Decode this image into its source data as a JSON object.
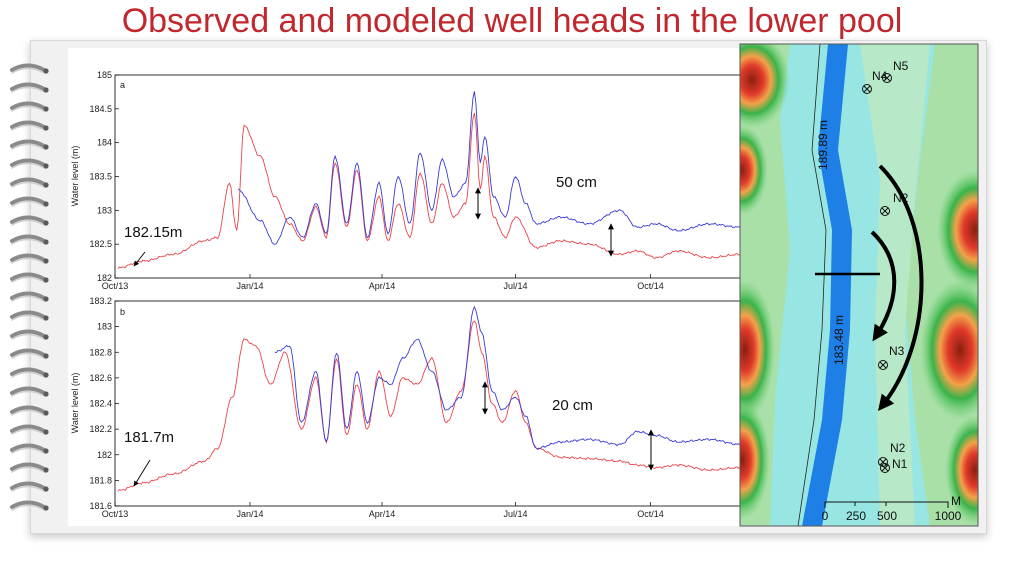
{
  "slide": {
    "title": "Observed and modeled well heads in the lower pool"
  },
  "colors": {
    "observed": "#3b3bd6",
    "modeled": "#e8454b",
    "river": "#1e7fe6",
    "title": "#c0282d"
  },
  "chart_data": [
    {
      "type": "line",
      "panel": "a",
      "ylabel": "Water level (m)",
      "ylim": [
        182,
        185
      ],
      "yticks": [
        "182",
        "182.5",
        "183",
        "183.5",
        "184",
        "184.5",
        "185"
      ],
      "xticks": [
        "Oct/13",
        "Jan/14",
        "Apr/14",
        "Jul/14",
        "Oct/14"
      ],
      "series": [
        {
          "color": "#e8454b",
          "x": [
            "2013-10-03",
            "2013-10-20",
            "2013-11-10",
            "2013-12-01",
            "2013-12-10",
            "2013-12-18",
            "2013-12-23",
            "2013-12-28",
            "2014-01-08",
            "2014-01-18",
            "2014-01-28",
            "2014-02-06",
            "2014-02-15",
            "2014-02-22",
            "2014-02-28",
            "2014-03-08",
            "2014-03-15",
            "2014-03-22",
            "2014-03-30",
            "2014-04-05",
            "2014-04-12",
            "2014-04-20",
            "2014-04-27",
            "2014-05-05",
            "2014-05-12",
            "2014-05-20",
            "2014-05-28",
            "2014-06-03",
            "2014-06-07",
            "2014-06-10",
            "2014-06-16",
            "2014-06-24",
            "2014-07-01",
            "2014-07-15",
            "2014-08-01",
            "2014-08-20",
            "2014-09-10",
            "2014-09-22",
            "2014-10-05",
            "2014-10-20",
            "2014-11-10",
            "2014-12-01"
          ],
          "y": [
            182.15,
            182.25,
            182.35,
            182.55,
            182.6,
            183.4,
            182.7,
            184.25,
            183.8,
            183.2,
            182.8,
            182.55,
            183.05,
            182.6,
            183.7,
            182.75,
            183.6,
            182.55,
            183.2,
            182.55,
            183.1,
            182.6,
            183.55,
            182.8,
            183.4,
            182.9,
            183.1,
            184.45,
            183.3,
            183.8,
            182.9,
            182.6,
            182.9,
            182.45,
            182.55,
            182.5,
            182.35,
            182.4,
            182.3,
            182.4,
            182.3,
            182.35
          ]
        },
        {
          "color": "#3b3bd6",
          "x": [
            "2013-12-24",
            "2014-01-08",
            "2014-01-18",
            "2014-01-28",
            "2014-02-06",
            "2014-02-15",
            "2014-02-22",
            "2014-02-28",
            "2014-03-08",
            "2014-03-15",
            "2014-03-22",
            "2014-03-30",
            "2014-04-05",
            "2014-04-12",
            "2014-04-20",
            "2014-04-27",
            "2014-05-05",
            "2014-05-12",
            "2014-05-20",
            "2014-05-28",
            "2014-06-03",
            "2014-06-07",
            "2014-06-10",
            "2014-06-16",
            "2014-06-24",
            "2014-07-01",
            "2014-07-08",
            "2014-07-15",
            "2014-08-01",
            "2014-08-20",
            "2014-09-10",
            "2014-09-22",
            "2014-10-05",
            "2014-10-20",
            "2014-11-10",
            "2014-12-01"
          ],
          "y": [
            183.3,
            182.85,
            182.5,
            182.9,
            182.6,
            183.1,
            182.65,
            183.8,
            182.8,
            183.7,
            182.6,
            183.4,
            182.65,
            183.5,
            182.8,
            183.85,
            183.0,
            183.75,
            183.2,
            183.4,
            184.75,
            183.7,
            184.1,
            183.2,
            182.9,
            183.5,
            183.1,
            182.8,
            182.9,
            182.8,
            183.0,
            182.75,
            182.8,
            182.7,
            182.8,
            182.75
          ]
        }
      ],
      "annotations": [
        {
          "text": "182.15m"
        },
        {
          "text": "50 cm"
        }
      ]
    },
    {
      "type": "line",
      "panel": "b",
      "ylabel": "Water level (m)",
      "ylim": [
        181.6,
        183.2
      ],
      "yticks": [
        "181.6",
        "181.8",
        "182",
        "182.2",
        "182.4",
        "182.6",
        "182.8",
        "183",
        "183.2"
      ],
      "xticks": [
        "Oct/13",
        "Jan/14",
        "Apr/14",
        "Jul/14",
        "Oct/14"
      ],
      "series": [
        {
          "color": "#e8454b",
          "x": [
            "2013-10-03",
            "2013-10-20",
            "2013-11-10",
            "2013-12-01",
            "2013-12-10",
            "2013-12-20",
            "2013-12-28",
            "2014-01-05",
            "2014-01-15",
            "2014-01-25",
            "2014-02-05",
            "2014-02-15",
            "2014-02-22",
            "2014-03-01",
            "2014-03-08",
            "2014-03-15",
            "2014-03-22",
            "2014-03-30",
            "2014-04-07",
            "2014-04-15",
            "2014-04-25",
            "2014-05-05",
            "2014-05-15",
            "2014-05-25",
            "2014-06-03",
            "2014-06-08",
            "2014-06-15",
            "2014-06-22",
            "2014-07-01",
            "2014-07-08",
            "2014-07-15",
            "2014-08-01",
            "2014-08-20",
            "2014-09-10",
            "2014-09-22",
            "2014-10-05",
            "2014-10-20",
            "2014-11-10",
            "2014-12-01"
          ],
          "y": [
            181.72,
            181.78,
            181.85,
            181.95,
            182.05,
            182.45,
            182.9,
            182.85,
            182.55,
            182.8,
            182.2,
            182.6,
            182.1,
            182.75,
            182.15,
            182.55,
            182.2,
            182.65,
            182.3,
            182.6,
            182.55,
            182.75,
            182.25,
            182.5,
            183.05,
            182.8,
            182.4,
            182.25,
            182.5,
            182.25,
            182.05,
            181.98,
            181.97,
            181.95,
            181.92,
            181.9,
            181.92,
            181.88,
            181.9
          ]
        },
        {
          "color": "#3b3bd6",
          "x": [
            "2014-01-18",
            "2014-01-28",
            "2014-02-05",
            "2014-02-15",
            "2014-02-22",
            "2014-03-01",
            "2014-03-08",
            "2014-03-15",
            "2014-03-22",
            "2014-03-30",
            "2014-04-07",
            "2014-04-15",
            "2014-04-25",
            "2014-05-05",
            "2014-05-15",
            "2014-05-25",
            "2014-06-03",
            "2014-06-08",
            "2014-06-15",
            "2014-06-22",
            "2014-07-01",
            "2014-07-08",
            "2014-07-15",
            "2014-08-01",
            "2014-08-20",
            "2014-09-10",
            "2014-09-22",
            "2014-10-05",
            "2014-10-20",
            "2014-11-10",
            "2014-12-01"
          ],
          "y": [
            182.8,
            182.85,
            182.25,
            182.65,
            182.1,
            182.8,
            182.2,
            182.65,
            182.25,
            182.6,
            182.55,
            182.75,
            182.9,
            182.65,
            182.35,
            182.45,
            183.15,
            182.95,
            182.5,
            182.35,
            182.45,
            182.3,
            182.05,
            182.1,
            182.12,
            182.08,
            182.18,
            182.15,
            182.1,
            182.12,
            182.08
          ]
        }
      ],
      "annotations": [
        {
          "text": "181.7m"
        },
        {
          "text": "20 cm"
        }
      ]
    }
  ],
  "map": {
    "wells": [
      "N5",
      "N4",
      "N2",
      "N3",
      "N2",
      "N1"
    ],
    "river_labels": [
      "189.89 m",
      "183.48 m"
    ],
    "scale": {
      "labels": [
        "0",
        "250",
        "500",
        "1000"
      ],
      "unit": "M"
    }
  }
}
